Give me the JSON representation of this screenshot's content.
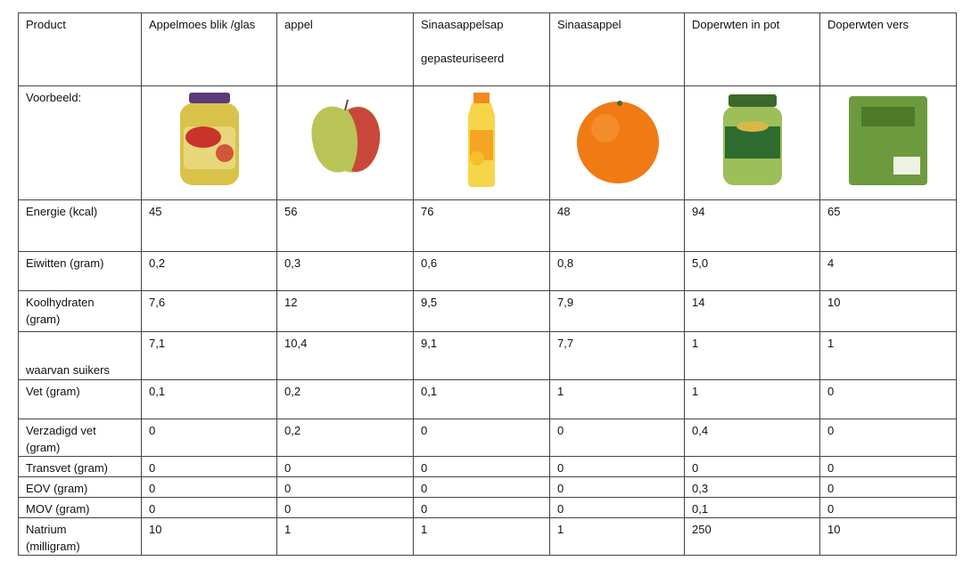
{
  "table": {
    "header": [
      "Product",
      "Appelmoes blik /glas",
      "appel",
      [
        "Sinaasappelsap",
        "gepasteuriseerd"
      ],
      "Sinaasappel",
      "Doperwten in pot",
      "Doperwten vers"
    ],
    "example_label": "Voorbeeld:",
    "rows": [
      [
        "Energie (kcal)",
        "45",
        "56",
        "76",
        "48",
        "94",
        "65"
      ],
      [
        "Eiwitten (gram)",
        "0,2",
        "0,3",
        "0,6",
        "0,8",
        "5,0",
        "4"
      ],
      [
        "Koolhydraten (gram)",
        "7,6",
        "12",
        "9,5",
        "7,9",
        "14",
        "10"
      ],
      [
        "waarvan suikers",
        "7,1",
        "10,4",
        "9,1",
        "7,7",
        "1",
        "1"
      ],
      [
        "Vet (gram)",
        "0,1",
        "0,2",
        "0,1",
        "1",
        "1",
        "0"
      ],
      [
        "Verzadigd vet (gram)",
        "0",
        "0,2",
        "0",
        "0",
        "0,4",
        "0"
      ],
      [
        "Transvet (gram)",
        "0",
        "0",
        "0",
        "0",
        "0",
        "0"
      ],
      [
        "EOV (gram)",
        "0",
        "0",
        "0",
        "0",
        "0,3",
        "0"
      ],
      [
        "MOV  (gram)",
        "0",
        "0",
        "0",
        "0",
        "0,1",
        "0"
      ],
      [
        "Natrium (milligram)",
        "10",
        "1",
        "1",
        "1",
        "250",
        "10"
      ]
    ]
  }
}
